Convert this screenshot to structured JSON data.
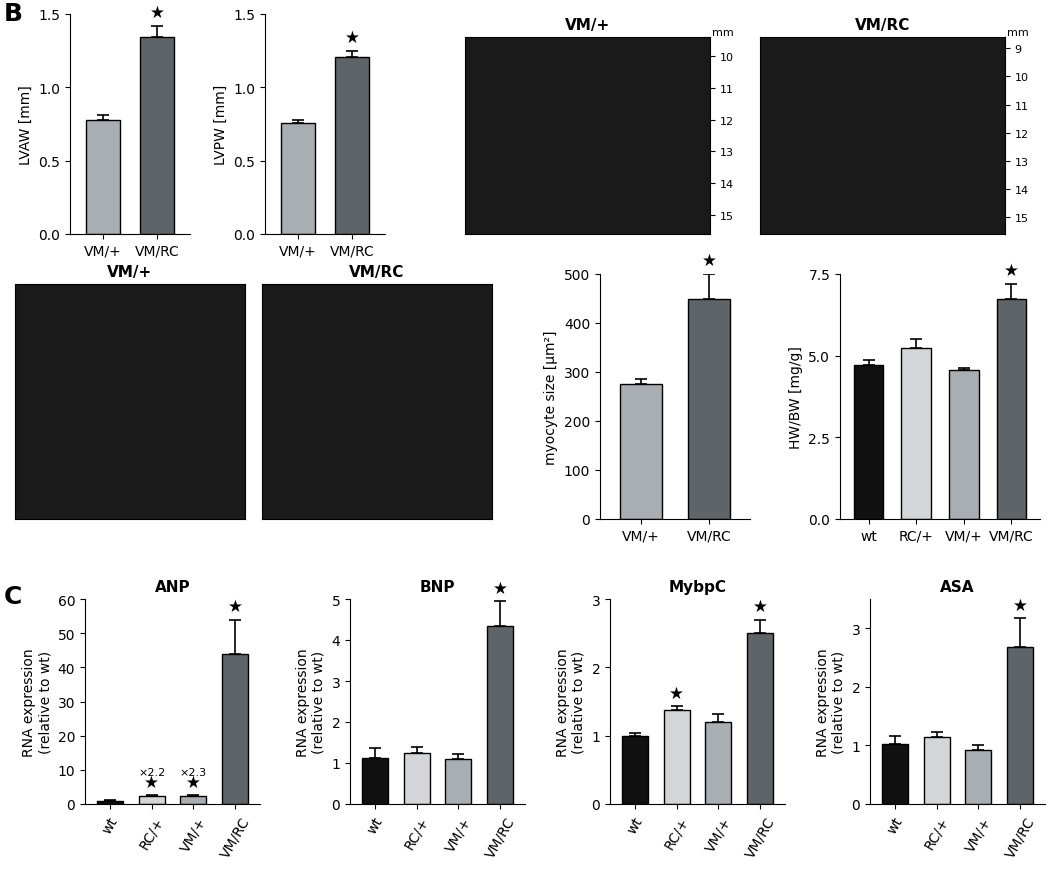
{
  "chart_data": [
    {
      "type": "bar",
      "panel": "B",
      "ylabel": "LVAW [mm]",
      "categories": [
        "VM/+",
        "VM/RC"
      ],
      "values": [
        0.78,
        1.34
      ],
      "errors": [
        0.03,
        0.08
      ],
      "colors": [
        "#a9aeb3",
        "#5f6468"
      ],
      "ylim": [
        0,
        1.5
      ],
      "yticks": [
        {
          "value": 0,
          "label": "0.0"
        },
        {
          "value": 0.5,
          "label": "0.5"
        },
        {
          "value": 1.0,
          "label": "1.0"
        },
        {
          "value": 1.5,
          "label": "1.5"
        }
      ],
      "annotations": [
        {
          "category": "VM/RC",
          "text": "★"
        }
      ]
    },
    {
      "type": "bar",
      "ylabel": "LVPW [mm]",
      "categories": [
        "VM/+",
        "VM/RC"
      ],
      "values": [
        0.76,
        1.21
      ],
      "errors": [
        0.02,
        0.04
      ],
      "colors": [
        "#a9aeb3",
        "#5f6468"
      ],
      "ylim": [
        0,
        1.5
      ],
      "yticks": [
        {
          "value": 0,
          "label": "0.0"
        },
        {
          "value": 0.5,
          "label": "0.5"
        },
        {
          "value": 1.0,
          "label": "1.0"
        },
        {
          "value": 1.5,
          "label": "1.5"
        }
      ],
      "annotations": [
        {
          "category": "VM/RC",
          "text": "★"
        }
      ]
    },
    {
      "type": "image",
      "title": "VM/+",
      "ylabel": "mm",
      "ylim": [
        9.4,
        15.6
      ],
      "yticks": [
        10,
        11,
        12,
        13,
        14,
        15
      ]
    },
    {
      "type": "image",
      "title": "VM/RC",
      "ylabel": "mm",
      "ylim": [
        8.6,
        15.6
      ],
      "yticks": [
        9,
        10,
        11,
        12,
        13,
        14,
        15
      ]
    },
    {
      "type": "image",
      "title": "VM/+"
    },
    {
      "type": "image",
      "title": "VM/RC"
    },
    {
      "type": "bar",
      "ylabel": "myocyte size [µm²]",
      "categories": [
        "VM/+",
        "VM/RC"
      ],
      "values": [
        275,
        450
      ],
      "errors": [
        10,
        50
      ],
      "colors": [
        "#a9aeb3",
        "#5f6468"
      ],
      "ylim": [
        0,
        500
      ],
      "yticks": [
        0,
        100,
        200,
        300,
        400,
        500
      ],
      "annotations": [
        {
          "category": "VM/RC",
          "text": "★"
        }
      ]
    },
    {
      "type": "bar",
      "ylabel": "HW/BW [mg/g]",
      "categories": [
        "wt",
        "RC/+",
        "VM/+",
        "VM/RC"
      ],
      "values": [
        4.72,
        5.25,
        4.55,
        6.75
      ],
      "errors": [
        0.15,
        0.25,
        0.08,
        0.45
      ],
      "colors": [
        "#111111",
        "#d3d6d8",
        "#a9aeb3",
        "#5f6468"
      ],
      "ylim": [
        0,
        7.5
      ],
      "yticks": [
        {
          "value": 0,
          "label": "0.0"
        },
        {
          "value": 2.5,
          "label": "2.5"
        },
        {
          "value": 5.0,
          "label": "5.0"
        },
        {
          "value": 7.5,
          "label": "7.5"
        }
      ],
      "annotations": [
        {
          "category": "VM/RC",
          "text": "★"
        }
      ]
    },
    {
      "type": "bar",
      "panel": "C",
      "title": "ANP",
      "ylabel": "RNA expression\n(relative to wt)",
      "categories": [
        "wt",
        "RC/+",
        "VM/+",
        "VM/RC"
      ],
      "values": [
        1.0,
        2.2,
        2.3,
        44
      ],
      "errors": [
        0.2,
        0.3,
        0.3,
        10
      ],
      "colors": [
        "#111111",
        "#d3d6d8",
        "#a9aeb3",
        "#5f6468"
      ],
      "ylim": [
        0,
        60
      ],
      "yticks": [
        0,
        10,
        20,
        30,
        40,
        50,
        60
      ],
      "annotations": [
        {
          "category": "RC/+",
          "text": "★"
        },
        {
          "category": "RC/+",
          "text": "×2.2"
        },
        {
          "category": "VM/+",
          "text": "★"
        },
        {
          "category": "VM/+",
          "text": "×2.3"
        },
        {
          "category": "VM/RC",
          "text": "★"
        }
      ]
    },
    {
      "type": "bar",
      "title": "BNP",
      "ylabel": "RNA expression\n(relative to wt)",
      "categories": [
        "wt",
        "RC/+",
        "VM/+",
        "VM/RC"
      ],
      "values": [
        1.12,
        1.25,
        1.1,
        4.35
      ],
      "errors": [
        0.25,
        0.15,
        0.12,
        0.6
      ],
      "colors": [
        "#111111",
        "#d3d6d8",
        "#a9aeb3",
        "#5f6468"
      ],
      "ylim": [
        0,
        5
      ],
      "yticks": [
        0,
        1,
        2,
        3,
        4,
        5
      ],
      "annotations": [
        {
          "category": "VM/RC",
          "text": "★"
        }
      ]
    },
    {
      "type": "bar",
      "title": "MybpC",
      "ylabel": "RNA expression\n(relative to wt)",
      "categories": [
        "wt",
        "RC/+",
        "VM/+",
        "VM/RC"
      ],
      "values": [
        1.0,
        1.37,
        1.2,
        2.5
      ],
      "errors": [
        0.04,
        0.07,
        0.12,
        0.2
      ],
      "colors": [
        "#111111",
        "#d3d6d8",
        "#a9aeb3",
        "#5f6468"
      ],
      "ylim": [
        0,
        3
      ],
      "yticks": [
        0,
        1,
        2,
        3
      ],
      "annotations": [
        {
          "category": "RC/+",
          "text": "★"
        },
        {
          "category": "VM/RC",
          "text": "★"
        }
      ]
    },
    {
      "type": "bar",
      "title": "ASA",
      "ylabel": "RNA expression\n(relative to wt)",
      "categories": [
        "wt",
        "RC/+",
        "VM/+",
        "VM/RC"
      ],
      "values": [
        1.03,
        1.15,
        0.93,
        2.68
      ],
      "errors": [
        0.13,
        0.08,
        0.07,
        0.5
      ],
      "colors": [
        "#111111",
        "#d3d6d8",
        "#a9aeb3",
        "#5f6468"
      ],
      "ylim": [
        0,
        3.5
      ],
      "yticks": [
        0,
        1,
        2,
        3
      ],
      "annotations": [
        {
          "category": "VM/RC",
          "text": "★"
        }
      ]
    }
  ]
}
